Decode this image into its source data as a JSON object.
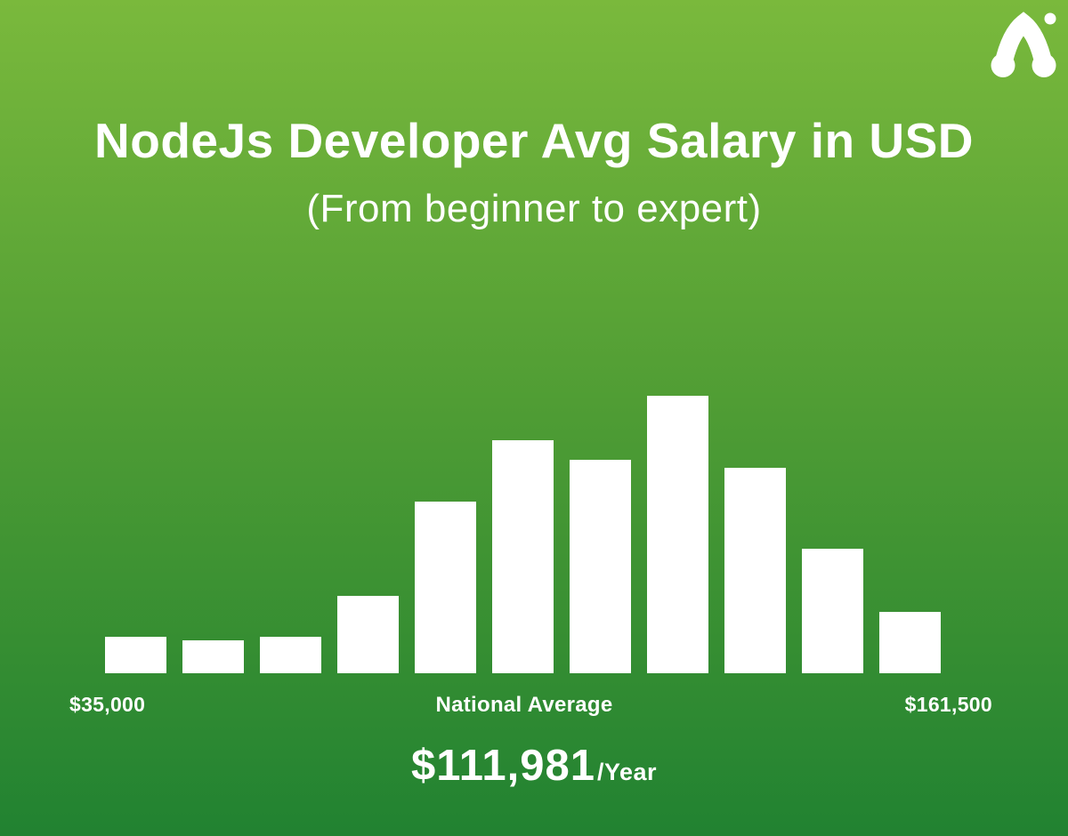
{
  "header": {
    "title": "NodeJs Developer Avg Salary in USD",
    "subtitle": "(From beginner to expert)"
  },
  "icons": {
    "logo": "arch-n-brand-logo-icon"
  },
  "colors": {
    "background_top": "#7ab93c",
    "background_bottom": "#218231",
    "bar": "#ffffff",
    "text": "#ffffff"
  },
  "chart_data": {
    "type": "bar",
    "title": "NodeJs Developer Avg Salary in USD",
    "subtitle": "(From beginner to expert)",
    "bar_count": 11,
    "values_pct_of_max": [
      13,
      12,
      13,
      28,
      62,
      84,
      77,
      100,
      74,
      45,
      22
    ],
    "x_tick_labels": [
      "$35,000",
      "National Average",
      "$161,500"
    ],
    "x_range_usd": [
      35000,
      161500
    ],
    "ylabel": "",
    "xlabel": "",
    "ylim": [
      0,
      100
    ],
    "grid": false,
    "legend": false,
    "bar_color": "#ffffff",
    "annotation": {
      "label": "National Average",
      "value": "$111,981",
      "unit": "/Year"
    }
  },
  "average": {
    "value": "$111,981",
    "unit": "/Year"
  }
}
